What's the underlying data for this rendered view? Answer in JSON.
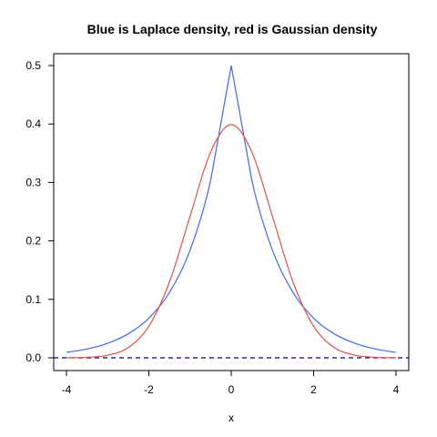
{
  "chart_data": {
    "type": "line",
    "title": "Blue is Laplace density, red is Gaussian density",
    "xlabel": "x",
    "ylabel": "",
    "xlim": [
      -4,
      4
    ],
    "ylim": [
      0,
      0.5
    ],
    "x_ticks": [
      -4,
      -2,
      0,
      2,
      4
    ],
    "y_ticks": [
      0.0,
      0.1,
      0.2,
      0.3,
      0.4,
      0.5
    ],
    "x_tick_labels": [
      "-4",
      "-2",
      "0",
      "2",
      "4"
    ],
    "y_tick_labels": [
      "0.0",
      "0.1",
      "0.2",
      "0.3",
      "0.4",
      "0.5"
    ],
    "grid": false,
    "legend": "none",
    "x": [
      -4,
      -3.5,
      -3,
      -2.5,
      -2,
      -1.5,
      -1,
      -0.5,
      0,
      0.5,
      1,
      1.5,
      2,
      2.5,
      3,
      3.5,
      4
    ],
    "series": [
      {
        "color": "#4169e1",
        "values": [
          0.0092,
          0.0151,
          0.0249,
          0.041,
          0.0677,
          0.1116,
          0.1839,
          0.3033,
          0.5,
          0.3033,
          0.1839,
          0.1116,
          0.0677,
          0.041,
          0.0249,
          0.0151,
          0.0092
        ]
      },
      {
        "color": "#e0524e",
        "values": [
          0.0001,
          0.0009,
          0.0044,
          0.0175,
          0.054,
          0.1295,
          0.242,
          0.3521,
          0.3989,
          0.3521,
          0.242,
          0.1295,
          0.054,
          0.0175,
          0.0044,
          0.0009,
          0.0001
        ]
      }
    ],
    "reference_line": {
      "y": 0,
      "style": "dashed",
      "color": "#000080"
    }
  }
}
